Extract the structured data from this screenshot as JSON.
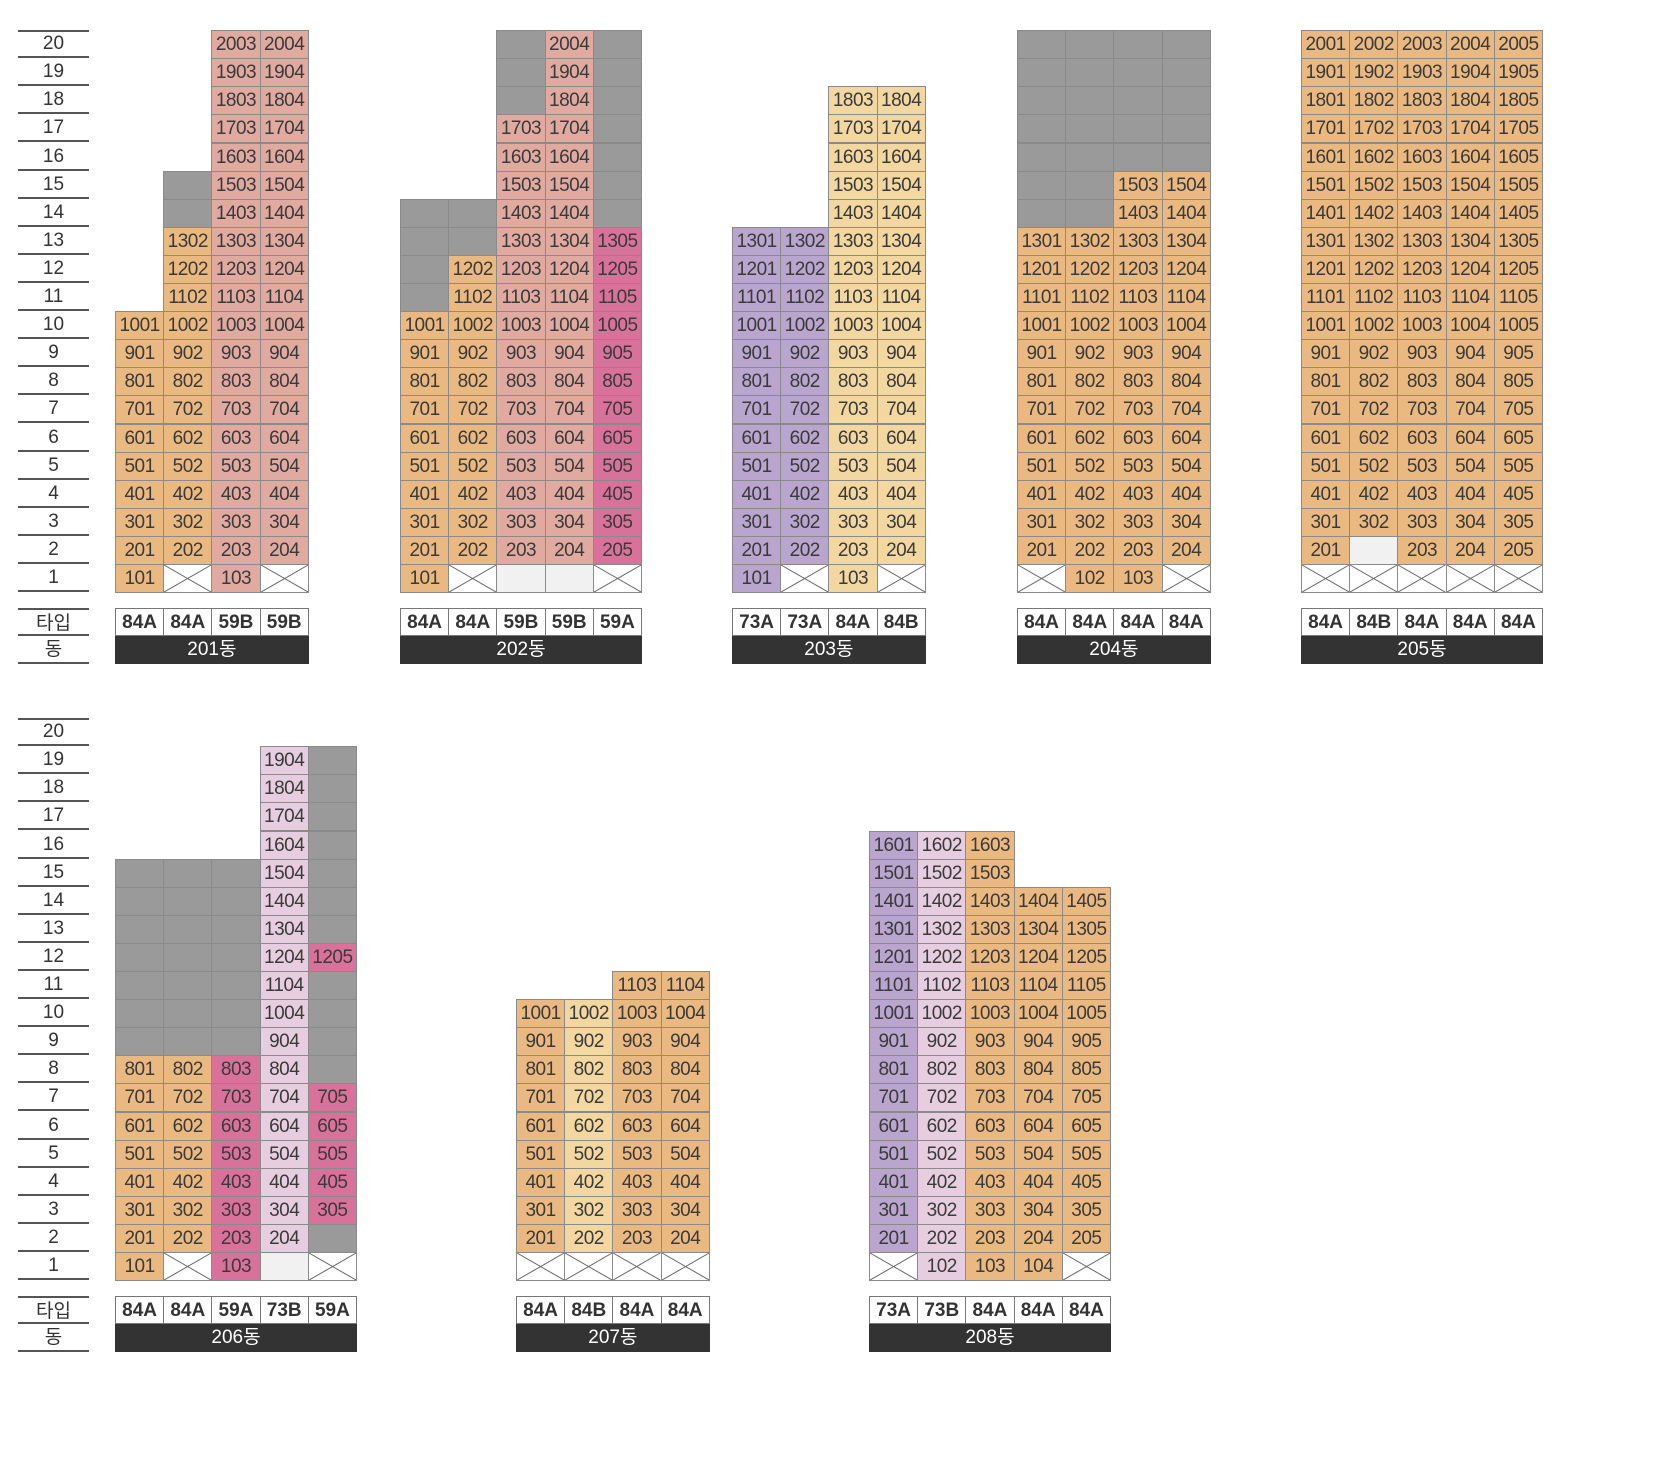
{
  "legend": {
    "type_label": "타입",
    "dong_label": "동"
  },
  "floor_labels": [
    "1",
    "2",
    "3",
    "4",
    "5",
    "6",
    "7",
    "8",
    "9",
    "10",
    "11",
    "12",
    "13",
    "14",
    "15",
    "16",
    "17",
    "18",
    "19",
    "20"
  ],
  "colors": {
    "O": "#eab981",
    "R": "#e0aaa0",
    "P": "#d9729a",
    "V": "#b9a5cd",
    "L": "#e6cde0",
    "Y": "#f3d7a1",
    "G": "#9a9a9a",
    "E": "#f1f1f1",
    "X": "#ffffff"
  },
  "groups": [
    {
      "name": "row-top",
      "floors": 20,
      "buildings": [
        {
          "name": "201동",
          "types": [
            "84A",
            "84A",
            "59B",
            "59B"
          ],
          "top": [
            10,
            15,
            20,
            20
          ],
          "columns": [
            {
              "color": "O",
              "top": 10,
              "mark": {
                "1": "V"
              },
              "ov": {
                "11": "G",
                "12": "G",
                "13": "G",
                "14": "G",
                "15": "G"
              }
            },
            {
              "color": "O",
              "top": 13,
              "mark": {},
              "ov": {
                "1": "X",
                "14": "G",
                "15": "G"
              }
            },
            {
              "color": "R",
              "top": 20,
              "mark": {},
              "ov": {}
            },
            {
              "color": "R",
              "top": 20,
              "mark": {},
              "ov": {
                "1": "X"
              }
            }
          ]
        },
        {
          "name": "202동",
          "types": [
            "84A",
            "84A",
            "59B",
            "59B",
            "59A"
          ],
          "top": [
            14,
            14,
            20,
            20,
            20
          ],
          "columns": [
            {
              "color": "O",
              "top": 10,
              "ov": {
                "11": "G",
                "12": "G",
                "13": "G",
                "14": "G"
              }
            },
            {
              "color": "O",
              "top": 12,
              "ov": {
                "1": "X",
                "13": "G",
                "14": "G"
              }
            },
            {
              "color": "R",
              "top": 17,
              "ov": {
                "1": "E",
                "18": "G",
                "19": "G",
                "20": "G"
              }
            },
            {
              "color": "R",
              "top": 20,
              "ov": {
                "1": "E"
              }
            },
            {
              "color": "P",
              "top": 13,
              "ov": {
                "1": "X",
                "14": "G",
                "15": "G",
                "16": "G",
                "17": "G",
                "18": "G",
                "19": "G",
                "20": "G"
              }
            }
          ]
        },
        {
          "name": "203동",
          "types": [
            "73A",
            "73A",
            "84A",
            "84B"
          ],
          "top": [
            13,
            13,
            18,
            18
          ],
          "columns": [
            {
              "color": "V",
              "top": 13,
              "ov": {}
            },
            {
              "color": "V",
              "top": 13,
              "ov": {
                "1": "X"
              }
            },
            {
              "color": "Y",
              "top": 18,
              "ov": {}
            },
            {
              "color": "Y",
              "top": 18,
              "ov": {
                "1": "X"
              }
            }
          ]
        },
        {
          "name": "204동",
          "types": [
            "84A",
            "84A",
            "84A",
            "84A"
          ],
          "top": [
            20,
            20,
            20,
            20
          ],
          "columns": [
            {
              "color": "O",
              "top": 13,
              "ov": {
                "1": "X",
                "14": "G",
                "15": "G",
                "16": "G",
                "17": "G",
                "18": "G",
                "19": "G",
                "20": "G"
              }
            },
            {
              "color": "O",
              "top": 13,
              "ov": {
                "14": "G",
                "15": "G",
                "16": "G",
                "17": "G",
                "18": "G",
                "19": "G",
                "20": "G"
              }
            },
            {
              "color": "O",
              "top": 15,
              "ov": {
                "16": "G",
                "17": "G",
                "18": "G",
                "19": "G",
                "20": "G"
              }
            },
            {
              "color": "O",
              "top": 15,
              "ov": {
                "1": "X",
                "16": "G",
                "17": "G",
                "18": "G",
                "19": "G",
                "20": "G"
              }
            }
          ]
        },
        {
          "name": "205동",
          "types": [
            "84A",
            "84B",
            "84A",
            "84A",
            "84A"
          ],
          "top": [
            20,
            20,
            20,
            20,
            20
          ],
          "columns": [
            {
              "color": "O",
              "top": 20,
              "ov": {
                "1": "X"
              }
            },
            {
              "color": "O",
              "top": 20,
              "ov": {
                "1": "X",
                "2": "E"
              }
            },
            {
              "color": "O",
              "top": 20,
              "ov": {
                "1": "X"
              }
            },
            {
              "color": "O",
              "top": 20,
              "ov": {
                "1": "X"
              }
            },
            {
              "color": "O",
              "top": 20,
              "ov": {
                "1": "X"
              }
            }
          ]
        }
      ]
    },
    {
      "name": "row-bottom",
      "floors": 20,
      "buildings": [
        {
          "name": "206동",
          "types": [
            "84A",
            "84A",
            "59A",
            "73B",
            "59A"
          ],
          "top": [
            15,
            15,
            15,
            19,
            19
          ],
          "columns": [
            {
              "color": "O",
              "top": 8,
              "ov": {
                "9": "G",
                "10": "G",
                "11": "G",
                "12": "G",
                "13": "G",
                "14": "G",
                "15": "G"
              }
            },
            {
              "color": "O",
              "top": 8,
              "ov": {
                "1": "X",
                "9": "G",
                "10": "G",
                "11": "G",
                "12": "G",
                "13": "G",
                "14": "G",
                "15": "G"
              }
            },
            {
              "color": "P",
              "top": 8,
              "ov": {
                "2": "P",
                "9": "G",
                "10": "G",
                "11": "G",
                "12": "G",
                "13": "G",
                "14": "G",
                "15": "G"
              }
            },
            {
              "color": "L",
              "top": 19,
              "ov": {
                "1": "E"
              }
            },
            {
              "color": "P",
              "top": 7,
              "ov": {
                "1": "X",
                "2": "G",
                "8": "G",
                "9": "G",
                "10": "G",
                "11": "G",
                "12": "P",
                "13": "G",
                "14": "G",
                "15": "G",
                "16": "G",
                "17": "G",
                "18": "G",
                "19": "G"
              },
              "skip": {
                "6": false
              }
            }
          ]
        },
        {
          "name": "207동",
          "types": [
            "84A",
            "84B",
            "84A",
            "84A"
          ],
          "top": [
            10,
            10,
            11,
            11
          ],
          "columns": [
            {
              "color": "O",
              "top": 10,
              "ov": {
                "1": "X"
              }
            },
            {
              "color": "Y",
              "top": 10,
              "ov": {
                "1": "X"
              }
            },
            {
              "color": "O",
              "top": 11,
              "ov": {
                "1": "X"
              }
            },
            {
              "color": "O",
              "top": 11,
              "ov": {
                "1": "X"
              }
            }
          ]
        },
        {
          "name": "208동",
          "types": [
            "73A",
            "73B",
            "84A",
            "84A",
            "84A"
          ],
          "top": [
            16,
            16,
            16,
            14,
            14
          ],
          "columns": [
            {
              "color": "V",
              "top": 16,
              "ov": {
                "1": "X"
              }
            },
            {
              "color": "L",
              "top": 16,
              "ov": {}
            },
            {
              "color": "O",
              "top": 16,
              "ov": {}
            },
            {
              "color": "O",
              "top": 14,
              "ov": {}
            },
            {
              "color": "O",
              "top": 14,
              "ov": {
                "1": "X"
              }
            }
          ]
        }
      ]
    }
  ]
}
